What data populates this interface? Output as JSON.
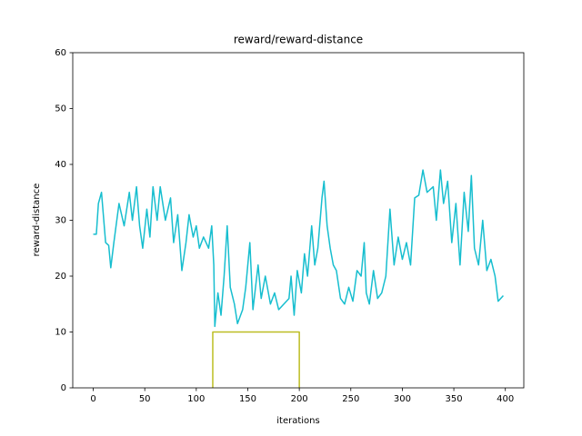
{
  "chart_data": {
    "type": "line",
    "title": "reward/reward-distance",
    "x_label": "iterations",
    "y_label": "reward-distance",
    "xlim": [
      -19.9,
      417.9
    ],
    "ylim": [
      0,
      60
    ],
    "xticks": [
      0,
      50,
      100,
      150,
      200,
      250,
      300,
      350,
      400
    ],
    "yticks": [
      0,
      10,
      20,
      30,
      40,
      50,
      60
    ],
    "series": [
      {
        "color": "#17becf",
        "x": [
          0,
          3,
          5,
          8,
          12,
          15,
          17,
          20,
          25,
          30,
          35,
          38,
          42,
          45,
          48,
          52,
          55,
          58,
          62,
          65,
          70,
          75,
          78,
          82,
          86,
          90,
          93,
          97,
          100,
          103,
          107,
          112,
          115,
          117,
          118,
          121,
          124,
          127,
          130,
          133,
          137,
          140,
          145,
          148,
          152,
          155,
          160,
          163,
          167,
          172,
          176,
          180,
          185,
          190,
          192,
          195,
          198,
          202,
          205,
          208,
          212,
          215,
          218,
          222,
          224,
          227,
          230,
          233,
          236,
          240,
          244,
          248,
          252,
          256,
          260,
          263,
          265,
          268,
          272,
          276,
          280,
          284,
          288,
          292,
          296,
          300,
          304,
          308,
          312,
          316,
          320,
          324,
          330,
          333,
          337,
          340,
          344,
          348,
          352,
          356,
          360,
          364,
          367,
          370,
          374,
          378,
          382,
          386,
          390,
          393,
          398
        ],
        "values": [
          27.5,
          27.5,
          33,
          35,
          26,
          25.5,
          21.5,
          26,
          33,
          29,
          35,
          30,
          36,
          29,
          25,
          32,
          27,
          36,
          30,
          36,
          30,
          34,
          26,
          31,
          21,
          26,
          31,
          27,
          29,
          25,
          27,
          25,
          29,
          22,
          11,
          17,
          13,
          20,
          29,
          18,
          15,
          11.5,
          14,
          18,
          26,
          14,
          22,
          16,
          20,
          15,
          17,
          14,
          15,
          16,
          20,
          13,
          21,
          17,
          24,
          20,
          29,
          22,
          25,
          34,
          37,
          29,
          25,
          22,
          21,
          16,
          15,
          18,
          15.5,
          21,
          20,
          26,
          17,
          15,
          21,
          16,
          17,
          20,
          32,
          22,
          27,
          23,
          26,
          22,
          34,
          34.5,
          39,
          35,
          36,
          30,
          39,
          33,
          37,
          26,
          33,
          22,
          35,
          28,
          38,
          25,
          22,
          30,
          21,
          23,
          20,
          15.5,
          16.5
        ]
      },
      {
        "color": "#bcbd22",
        "x": [
          116,
          116,
          200,
          200
        ],
        "values": [
          0,
          10,
          10,
          0
        ]
      }
    ]
  }
}
